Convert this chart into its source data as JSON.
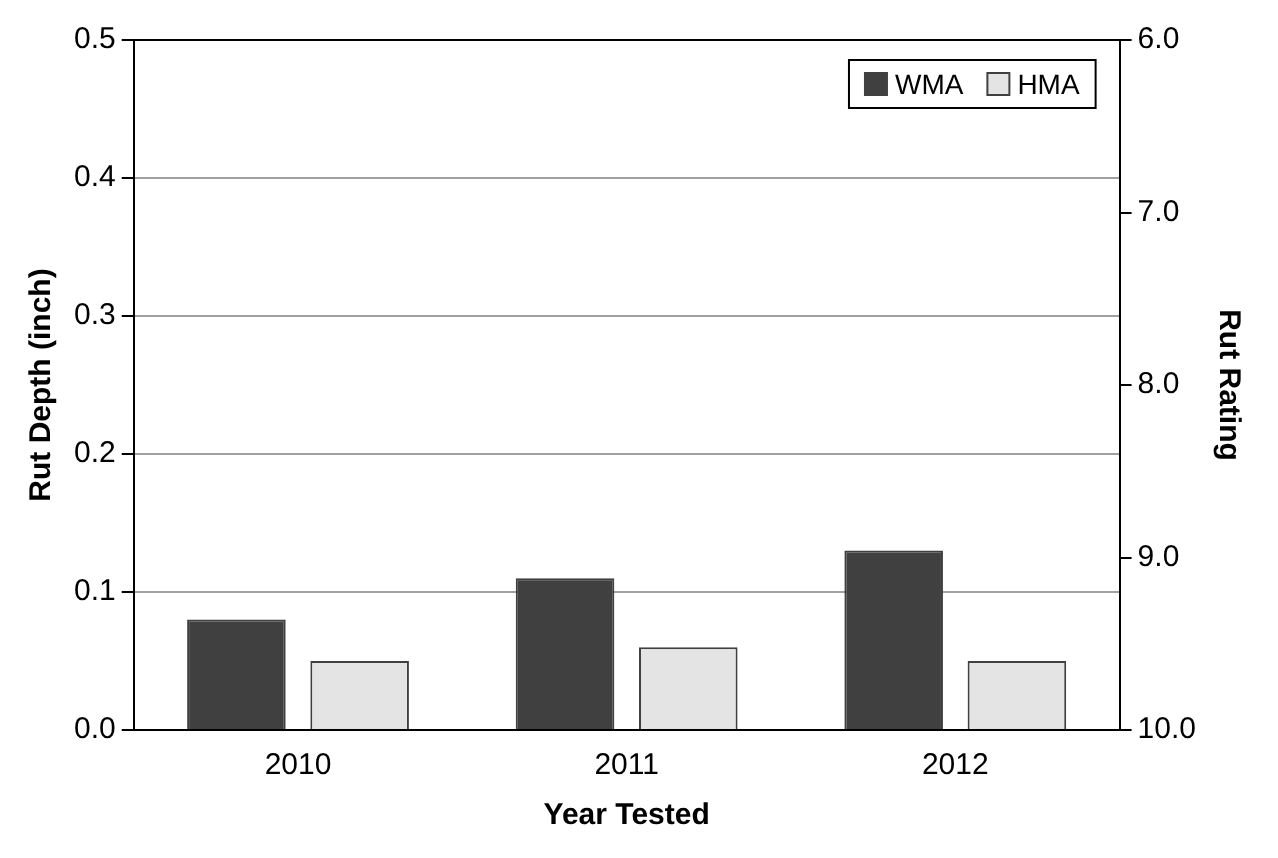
{
  "chart_data": {
    "type": "bar",
    "xlabel": "Year Tested",
    "ylabel": "Rut Depth (inch)",
    "y2label": "Rut Rating",
    "categories": [
      "2010",
      "2011",
      "2012"
    ],
    "series": [
      {
        "name": "WMA",
        "color": "#404040",
        "values": [
          0.08,
          0.11,
          0.13
        ]
      },
      {
        "name": "HMA",
        "color": "#e4e4e4",
        "values": [
          0.05,
          0.06,
          0.05
        ]
      }
    ],
    "ylim": [
      0,
      0.5
    ],
    "yticks": [
      {
        "value": 0,
        "label": "0.0"
      },
      0.1,
      0.2,
      0.3,
      0.4,
      0.5
    ],
    "y2lim": [
      10,
      6
    ],
    "y2ticks": [
      {
        "value": 6,
        "label": "6.0"
      },
      {
        "value": 7,
        "label": "7.0"
      },
      {
        "value": 8,
        "label": "8.0"
      },
      {
        "value": 9,
        "label": "9.0"
      },
      {
        "value": 10,
        "label": "10.0"
      }
    ],
    "grid": "y",
    "legend": "top right"
  }
}
